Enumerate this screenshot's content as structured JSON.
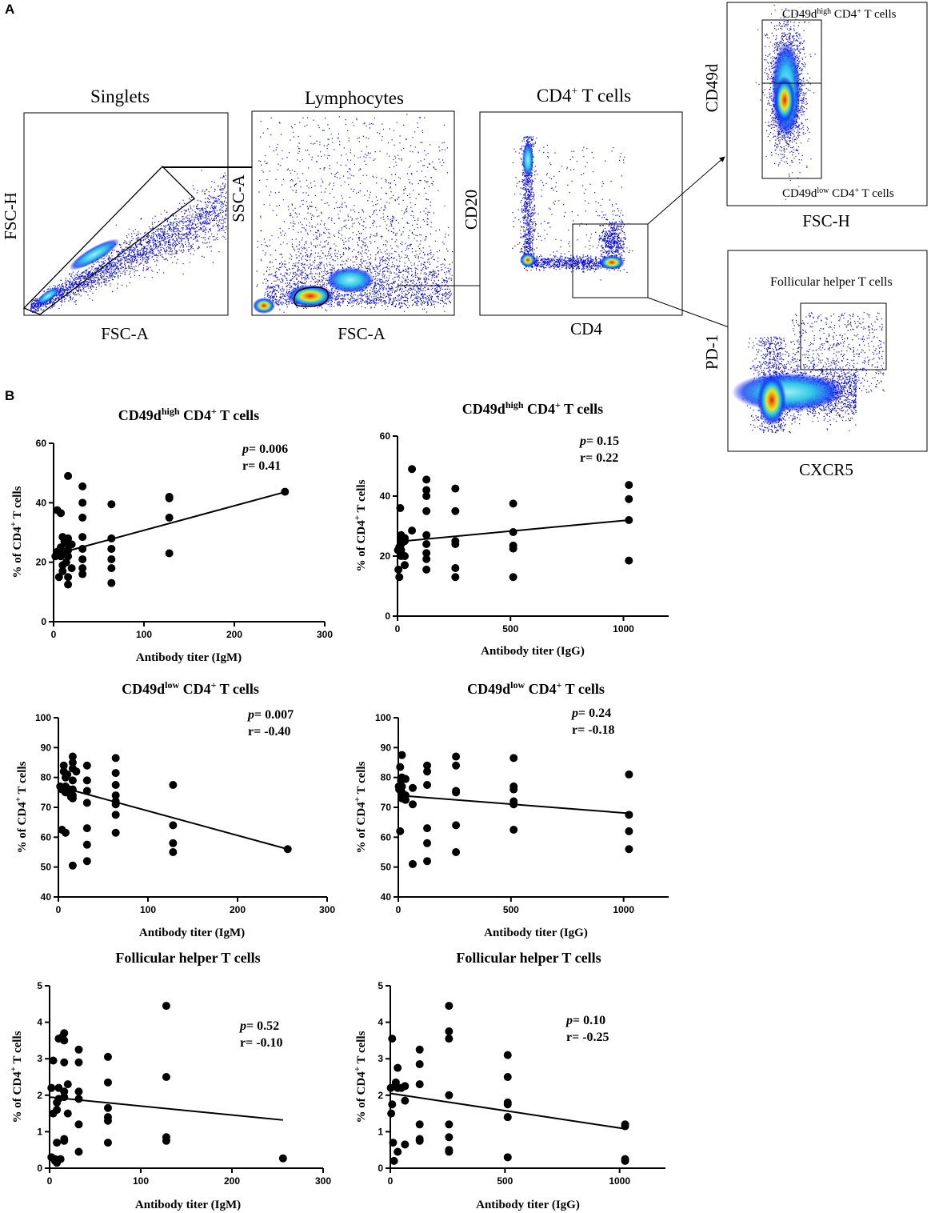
{
  "panel_labels": {
    "a": "A",
    "b": "B"
  },
  "flow_panels": [
    {
      "id": "singlets",
      "title": "Singlets",
      "xlabel": "FSC-A",
      "ylabel": "FSC-H"
    },
    {
      "id": "lymphocytes",
      "title": "Lymphocytes",
      "xlabel": "FSC-A",
      "ylabel": "SSC-A"
    },
    {
      "id": "cd4",
      "title_main": "CD4",
      "title_sup": "+",
      "title_rest": " T cells",
      "xlabel": "CD4",
      "ylabel": "CD20"
    },
    {
      "id": "cd49d",
      "xlabel": "FSC-H",
      "ylabel": "CD49d",
      "gate_high": {
        "a": "CD49d",
        "sup1": "high",
        "b": " CD4",
        "sup2": "+",
        "c": " T cells"
      },
      "gate_low": {
        "a": "CD49d",
        "sup1": "low",
        "b": " CD4",
        "sup2": "+",
        "c": " T cells"
      }
    },
    {
      "id": "tfh",
      "xlabel": "CXCR5",
      "ylabel": "PD-1",
      "gate_label": "Follicular  helper T cells"
    }
  ],
  "colors": {
    "dots": "#0a0af0",
    "mid": "#18c8e8",
    "hot": "#f0e818",
    "core": "#e81818",
    "marker": "#000000"
  },
  "chart_data": [
    {
      "type": "scatter",
      "id": "high-igm",
      "title": {
        "a": "CD49d",
        "sup1": "high",
        "b": " CD4",
        "sup2": "+",
        "c": " T cells"
      },
      "xlabel": "Antibody titer (IgM)",
      "ylabel": {
        "a": "% of CD4",
        "sup": "+",
        "b": " T cells"
      },
      "xlim": [
        0,
        300
      ],
      "ylim": [
        0,
        60
      ],
      "xticks": [
        0,
        100,
        200,
        300
      ],
      "yticks": [
        0,
        20,
        40,
        60
      ],
      "stat": {
        "p": "0.006",
        "r": "0.41"
      },
      "fit": [
        [
          0,
          22.5
        ],
        [
          256,
          43.6
        ]
      ],
      "points": [
        [
          2,
          22
        ],
        [
          4,
          23.5
        ],
        [
          4,
          37.5
        ],
        [
          6,
          15
        ],
        [
          8,
          36.5
        ],
        [
          8,
          25
        ],
        [
          8,
          23
        ],
        [
          8,
          22
        ],
        [
          10,
          28.5
        ],
        [
          10,
          19
        ],
        [
          10,
          17
        ],
        [
          12,
          27
        ],
        [
          14,
          23
        ],
        [
          14,
          20
        ],
        [
          16,
          49
        ],
        [
          16,
          28
        ],
        [
          16,
          26
        ],
        [
          16,
          24
        ],
        [
          16,
          22
        ],
        [
          16,
          15
        ],
        [
          16,
          12.5
        ],
        [
          20,
          26
        ],
        [
          20,
          18
        ],
        [
          32,
          45.5
        ],
        [
          32,
          40
        ],
        [
          32,
          35
        ],
        [
          32,
          28.5
        ],
        [
          32,
          24.5
        ],
        [
          32,
          21
        ],
        [
          32,
          18
        ],
        [
          32,
          16
        ],
        [
          64,
          39.5
        ],
        [
          64,
          28
        ],
        [
          64,
          24.5
        ],
        [
          64,
          21
        ],
        [
          64,
          18
        ],
        [
          64,
          13
        ],
        [
          128,
          42
        ],
        [
          128,
          41.5
        ],
        [
          128,
          35
        ],
        [
          128,
          23
        ],
        [
          256,
          43.7
        ]
      ]
    },
    {
      "type": "scatter",
      "id": "high-igg",
      "title": {
        "a": "CD49d",
        "sup1": "high",
        "b": " CD4",
        "sup2": "+",
        "c": " T cells"
      },
      "xlabel": "Antibody titer (IgG)",
      "ylabel": {
        "a": "% of CD4",
        "sup": "+",
        "b": " T cells"
      },
      "xlim": [
        0,
        1200
      ],
      "ylim": [
        0,
        60
      ],
      "xticks": [
        0,
        500,
        1000
      ],
      "yticks": [
        0,
        20,
        40,
        60
      ],
      "stat": {
        "p": "0.15",
        "r": "0.22"
      },
      "fit": [
        [
          0,
          24.8
        ],
        [
          1024,
          32
        ]
      ],
      "points": [
        [
          2,
          22
        ],
        [
          4,
          15.5
        ],
        [
          8,
          23
        ],
        [
          8,
          13
        ],
        [
          12,
          36
        ],
        [
          16,
          27
        ],
        [
          16,
          26
        ],
        [
          16,
          24
        ],
        [
          16,
          22
        ],
        [
          16,
          20
        ],
        [
          32,
          26
        ],
        [
          32,
          25
        ],
        [
          32,
          20
        ],
        [
          32,
          17
        ],
        [
          64,
          49
        ],
        [
          64,
          28.5
        ],
        [
          128,
          45.5
        ],
        [
          128,
          42
        ],
        [
          128,
          40
        ],
        [
          128,
          35
        ],
        [
          128,
          27
        ],
        [
          128,
          24
        ],
        [
          128,
          21
        ],
        [
          128,
          19
        ],
        [
          128,
          15.5
        ],
        [
          256,
          42.5
        ],
        [
          256,
          35
        ],
        [
          256,
          25
        ],
        [
          256,
          24
        ],
        [
          256,
          16
        ],
        [
          256,
          13
        ],
        [
          512,
          37.5
        ],
        [
          512,
          28
        ],
        [
          512,
          23.5
        ],
        [
          512,
          22.5
        ],
        [
          512,
          13
        ],
        [
          1024,
          43.7
        ],
        [
          1024,
          39
        ],
        [
          1024,
          32
        ],
        [
          1024,
          18.5
        ]
      ]
    },
    {
      "type": "scatter",
      "id": "low-igm",
      "title": {
        "a": "CD49d",
        "sup1": "low",
        "b": " CD4",
        "sup2": "+",
        "c": " T cells"
      },
      "xlabel": "Antibody titer (IgM)",
      "ylabel": {
        "a": "% of CD4",
        "sup": "+",
        "b": " T cells"
      },
      "xlim": [
        0,
        300
      ],
      "ylim": [
        40,
        100
      ],
      "xticks": [
        0,
        100,
        200,
        300
      ],
      "yticks": [
        40,
        50,
        60,
        70,
        80,
        90,
        100
      ],
      "stat": {
        "p": "0.007",
        "r": "-0.40"
      },
      "fit": [
        [
          0,
          77
        ],
        [
          256,
          56
        ]
      ],
      "points": [
        [
          2,
          77
        ],
        [
          4,
          76
        ],
        [
          4,
          62.5
        ],
        [
          6,
          84
        ],
        [
          6,
          82
        ],
        [
          8,
          80
        ],
        [
          8,
          77
        ],
        [
          8,
          75
        ],
        [
          8,
          61.5
        ],
        [
          10,
          81
        ],
        [
          12,
          76
        ],
        [
          14,
          73.5
        ],
        [
          16,
          87
        ],
        [
          16,
          85
        ],
        [
          16,
          83
        ],
        [
          16,
          79
        ],
        [
          16,
          76
        ],
        [
          16,
          74
        ],
        [
          16,
          73
        ],
        [
          16,
          50.5
        ],
        [
          20,
          82
        ],
        [
          32,
          84
        ],
        [
          32,
          79
        ],
        [
          32,
          75.5
        ],
        [
          32,
          71.5
        ],
        [
          32,
          63
        ],
        [
          32,
          57.5
        ],
        [
          32,
          52
        ],
        [
          64,
          86.5
        ],
        [
          64,
          81.5
        ],
        [
          64,
          77.5
        ],
        [
          64,
          74
        ],
        [
          64,
          72
        ],
        [
          64,
          71
        ],
        [
          64,
          67.5
        ],
        [
          64,
          61.5
        ],
        [
          128,
          77.5
        ],
        [
          128,
          64
        ],
        [
          128,
          58
        ],
        [
          128,
          55
        ],
        [
          256,
          56
        ]
      ]
    },
    {
      "type": "scatter",
      "id": "low-igg",
      "title": {
        "a": "CD49d",
        "sup1": "low",
        "b": " CD4",
        "sup2": "+",
        "c": " T cells"
      },
      "xlabel": "Antibody titer (IgG)",
      "ylabel": {
        "a": "% of CD4",
        "sup": "+",
        "b": " T cells"
      },
      "xlim": [
        0,
        1200
      ],
      "ylim": [
        40,
        100
      ],
      "xticks": [
        0,
        500,
        1000
      ],
      "yticks": [
        40,
        50,
        60,
        70,
        80,
        90,
        100
      ],
      "stat": {
        "p": "0.24",
        "r": "-0.18"
      },
      "fit": [
        [
          0,
          74
        ],
        [
          1024,
          68
        ]
      ],
      "points": [
        [
          2,
          77
        ],
        [
          4,
          76
        ],
        [
          8,
          83.5
        ],
        [
          8,
          62
        ],
        [
          12,
          79
        ],
        [
          16,
          87.5
        ],
        [
          16,
          80
        ],
        [
          16,
          77
        ],
        [
          16,
          75
        ],
        [
          16,
          73
        ],
        [
          32,
          79.5
        ],
        [
          32,
          74
        ],
        [
          32,
          72.5
        ],
        [
          64,
          76.5
        ],
        [
          64,
          71
        ],
        [
          64,
          51
        ],
        [
          128,
          84
        ],
        [
          128,
          82
        ],
        [
          128,
          77.5
        ],
        [
          128,
          63
        ],
        [
          128,
          58
        ],
        [
          128,
          52
        ],
        [
          256,
          87
        ],
        [
          256,
          84
        ],
        [
          256,
          75.5
        ],
        [
          256,
          75
        ],
        [
          256,
          64
        ],
        [
          256,
          55
        ],
        [
          512,
          86.5
        ],
        [
          512,
          77
        ],
        [
          512,
          76
        ],
        [
          512,
          72
        ],
        [
          512,
          71
        ],
        [
          512,
          62.5
        ],
        [
          1024,
          81
        ],
        [
          1024,
          67.5
        ],
        [
          1024,
          62
        ],
        [
          1024,
          56
        ]
      ]
    },
    {
      "type": "scatter",
      "id": "tfh-igm",
      "title": {
        "a": "Follicular helper T cells",
        "sup1": "",
        "b": "",
        "sup2": "",
        "c": ""
      },
      "xlabel": "Antibody titer (IgM)",
      "ylabel": {
        "a": "% of CD4",
        "sup": "+",
        "b": " T cells"
      },
      "xlim": [
        0,
        300
      ],
      "ylim": [
        0,
        5
      ],
      "xticks": [
        0,
        100,
        200,
        300
      ],
      "yticks": [
        0,
        1,
        2,
        3,
        4,
        5
      ],
      "stat": {
        "p": "0.52",
        "r": "-0.10"
      },
      "fit": [
        [
          0,
          1.95
        ],
        [
          256,
          1.32
        ]
      ],
      "points": [
        [
          2,
          2.2
        ],
        [
          2,
          0.3
        ],
        [
          4,
          2.95
        ],
        [
          4,
          1.5
        ],
        [
          6,
          0.25
        ],
        [
          6,
          0.2
        ],
        [
          8,
          1.8
        ],
        [
          8,
          1.6
        ],
        [
          8,
          0.7
        ],
        [
          8,
          0.15
        ],
        [
          10,
          3.55
        ],
        [
          10,
          2.2
        ],
        [
          10,
          1.9
        ],
        [
          12,
          0.25
        ],
        [
          14,
          3.6
        ],
        [
          16,
          3.7
        ],
        [
          16,
          3.5
        ],
        [
          16,
          2.9
        ],
        [
          16,
          2.1
        ],
        [
          16,
          1.95
        ],
        [
          16,
          0.8
        ],
        [
          16,
          0.75
        ],
        [
          20,
          2.3
        ],
        [
          20,
          1.5
        ],
        [
          32,
          3.25
        ],
        [
          32,
          2.9
        ],
        [
          32,
          2.1
        ],
        [
          32,
          1.9
        ],
        [
          32,
          1.2
        ],
        [
          32,
          0.45
        ],
        [
          64,
          3.05
        ],
        [
          64,
          2.35
        ],
        [
          64,
          1.65
        ],
        [
          64,
          1.4
        ],
        [
          64,
          1.3
        ],
        [
          64,
          0.7
        ],
        [
          128,
          4.45
        ],
        [
          128,
          2.5
        ],
        [
          128,
          0.85
        ],
        [
          128,
          0.75
        ],
        [
          256,
          0.27
        ]
      ]
    },
    {
      "type": "scatter",
      "id": "tfh-igg",
      "title": {
        "a": "Follicular helper T cells",
        "sup1": "",
        "b": "",
        "sup2": "",
        "c": ""
      },
      "xlabel": "Antibody titer (IgG)",
      "ylabel": {
        "a": "% of CD4",
        "sup": "+",
        "b": " T cells"
      },
      "xlim": [
        0,
        1200
      ],
      "ylim": [
        0,
        5
      ],
      "xticks": [
        0,
        500,
        1000
      ],
      "yticks": [
        0,
        1,
        2,
        3,
        4,
        5
      ],
      "stat": {
        "p": "0.10",
        "r": "-0.25"
      },
      "fit": [
        [
          0,
          2.05
        ],
        [
          1024,
          1.08
        ]
      ],
      "points": [
        [
          2,
          2.2
        ],
        [
          4,
          1.5
        ],
        [
          8,
          3.55
        ],
        [
          8,
          1.75
        ],
        [
          12,
          0.7
        ],
        [
          16,
          0.2
        ],
        [
          24,
          2.35
        ],
        [
          32,
          2.75
        ],
        [
          32,
          2.2
        ],
        [
          32,
          0.45
        ],
        [
          48,
          2.2
        ],
        [
          64,
          2.25
        ],
        [
          64,
          1.85
        ],
        [
          64,
          0.65
        ],
        [
          128,
          3.25
        ],
        [
          128,
          2.85
        ],
        [
          128,
          2.3
        ],
        [
          128,
          1.2
        ],
        [
          128,
          0.8
        ],
        [
          128,
          0.75
        ],
        [
          256,
          4.45
        ],
        [
          256,
          3.75
        ],
        [
          256,
          3.55
        ],
        [
          256,
          2.0
        ],
        [
          256,
          1.2
        ],
        [
          256,
          0.85
        ],
        [
          256,
          0.5
        ],
        [
          256,
          0.45
        ],
        [
          512,
          3.1
        ],
        [
          512,
          2.5
        ],
        [
          512,
          1.8
        ],
        [
          512,
          1.75
        ],
        [
          512,
          1.4
        ],
        [
          512,
          0.3
        ],
        [
          1024,
          1.2
        ],
        [
          1024,
          1.15
        ],
        [
          1024,
          0.25
        ],
        [
          1024,
          0.2
        ]
      ]
    }
  ]
}
